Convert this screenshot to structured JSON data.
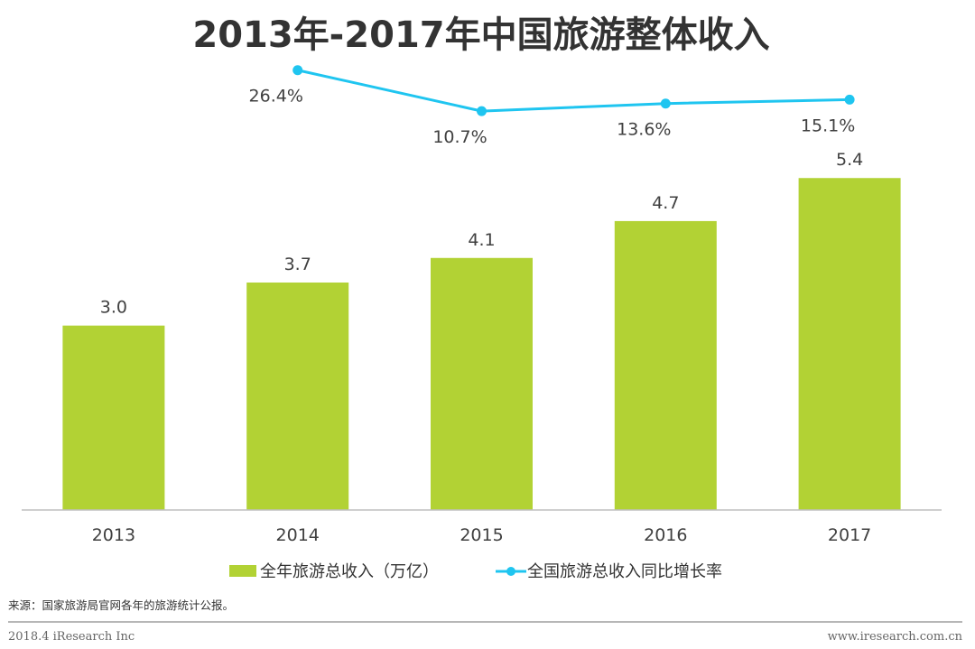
{
  "chart_data": {
    "type": "bar",
    "title": "2013年-2017年中国旅游整体收入",
    "categories": [
      "2013",
      "2014",
      "2015",
      "2016",
      "2017"
    ],
    "series": [
      {
        "name": "全年旅游总收入（万亿）",
        "type": "bar",
        "values": [
          3.0,
          3.7,
          4.1,
          4.7,
          5.4
        ],
        "labels": [
          "3.0",
          "3.7",
          "4.1",
          "4.7",
          "5.4"
        ],
        "color": "#b2d234"
      },
      {
        "name": "全国旅游总收入同比增长率",
        "type": "line",
        "values": [
          26.4,
          10.7,
          13.6,
          15.1
        ],
        "labels": [
          "26.4%",
          "10.7%",
          "13.6%",
          "15.1%"
        ],
        "x": [
          "2014",
          "2015",
          "2016",
          "2017"
        ],
        "color": "#1fc5f0"
      }
    ],
    "ylim_bar": [
      0,
      5.8
    ],
    "ylim_line": [
      9,
      27
    ],
    "xlabel": "",
    "ylabel": "",
    "grid": false,
    "legend": "bottom"
  },
  "source": "来源：国家旅游局官网各年的旅游统计公报。",
  "footer": {
    "left": "2018.4 iResearch Inc",
    "right": "www.iresearch.com.cn"
  },
  "colors": {
    "bar": "#b2d234",
    "line": "#1fc5f0",
    "axis": "#bfbfbf",
    "footer_rule": "#8c8c8c"
  }
}
